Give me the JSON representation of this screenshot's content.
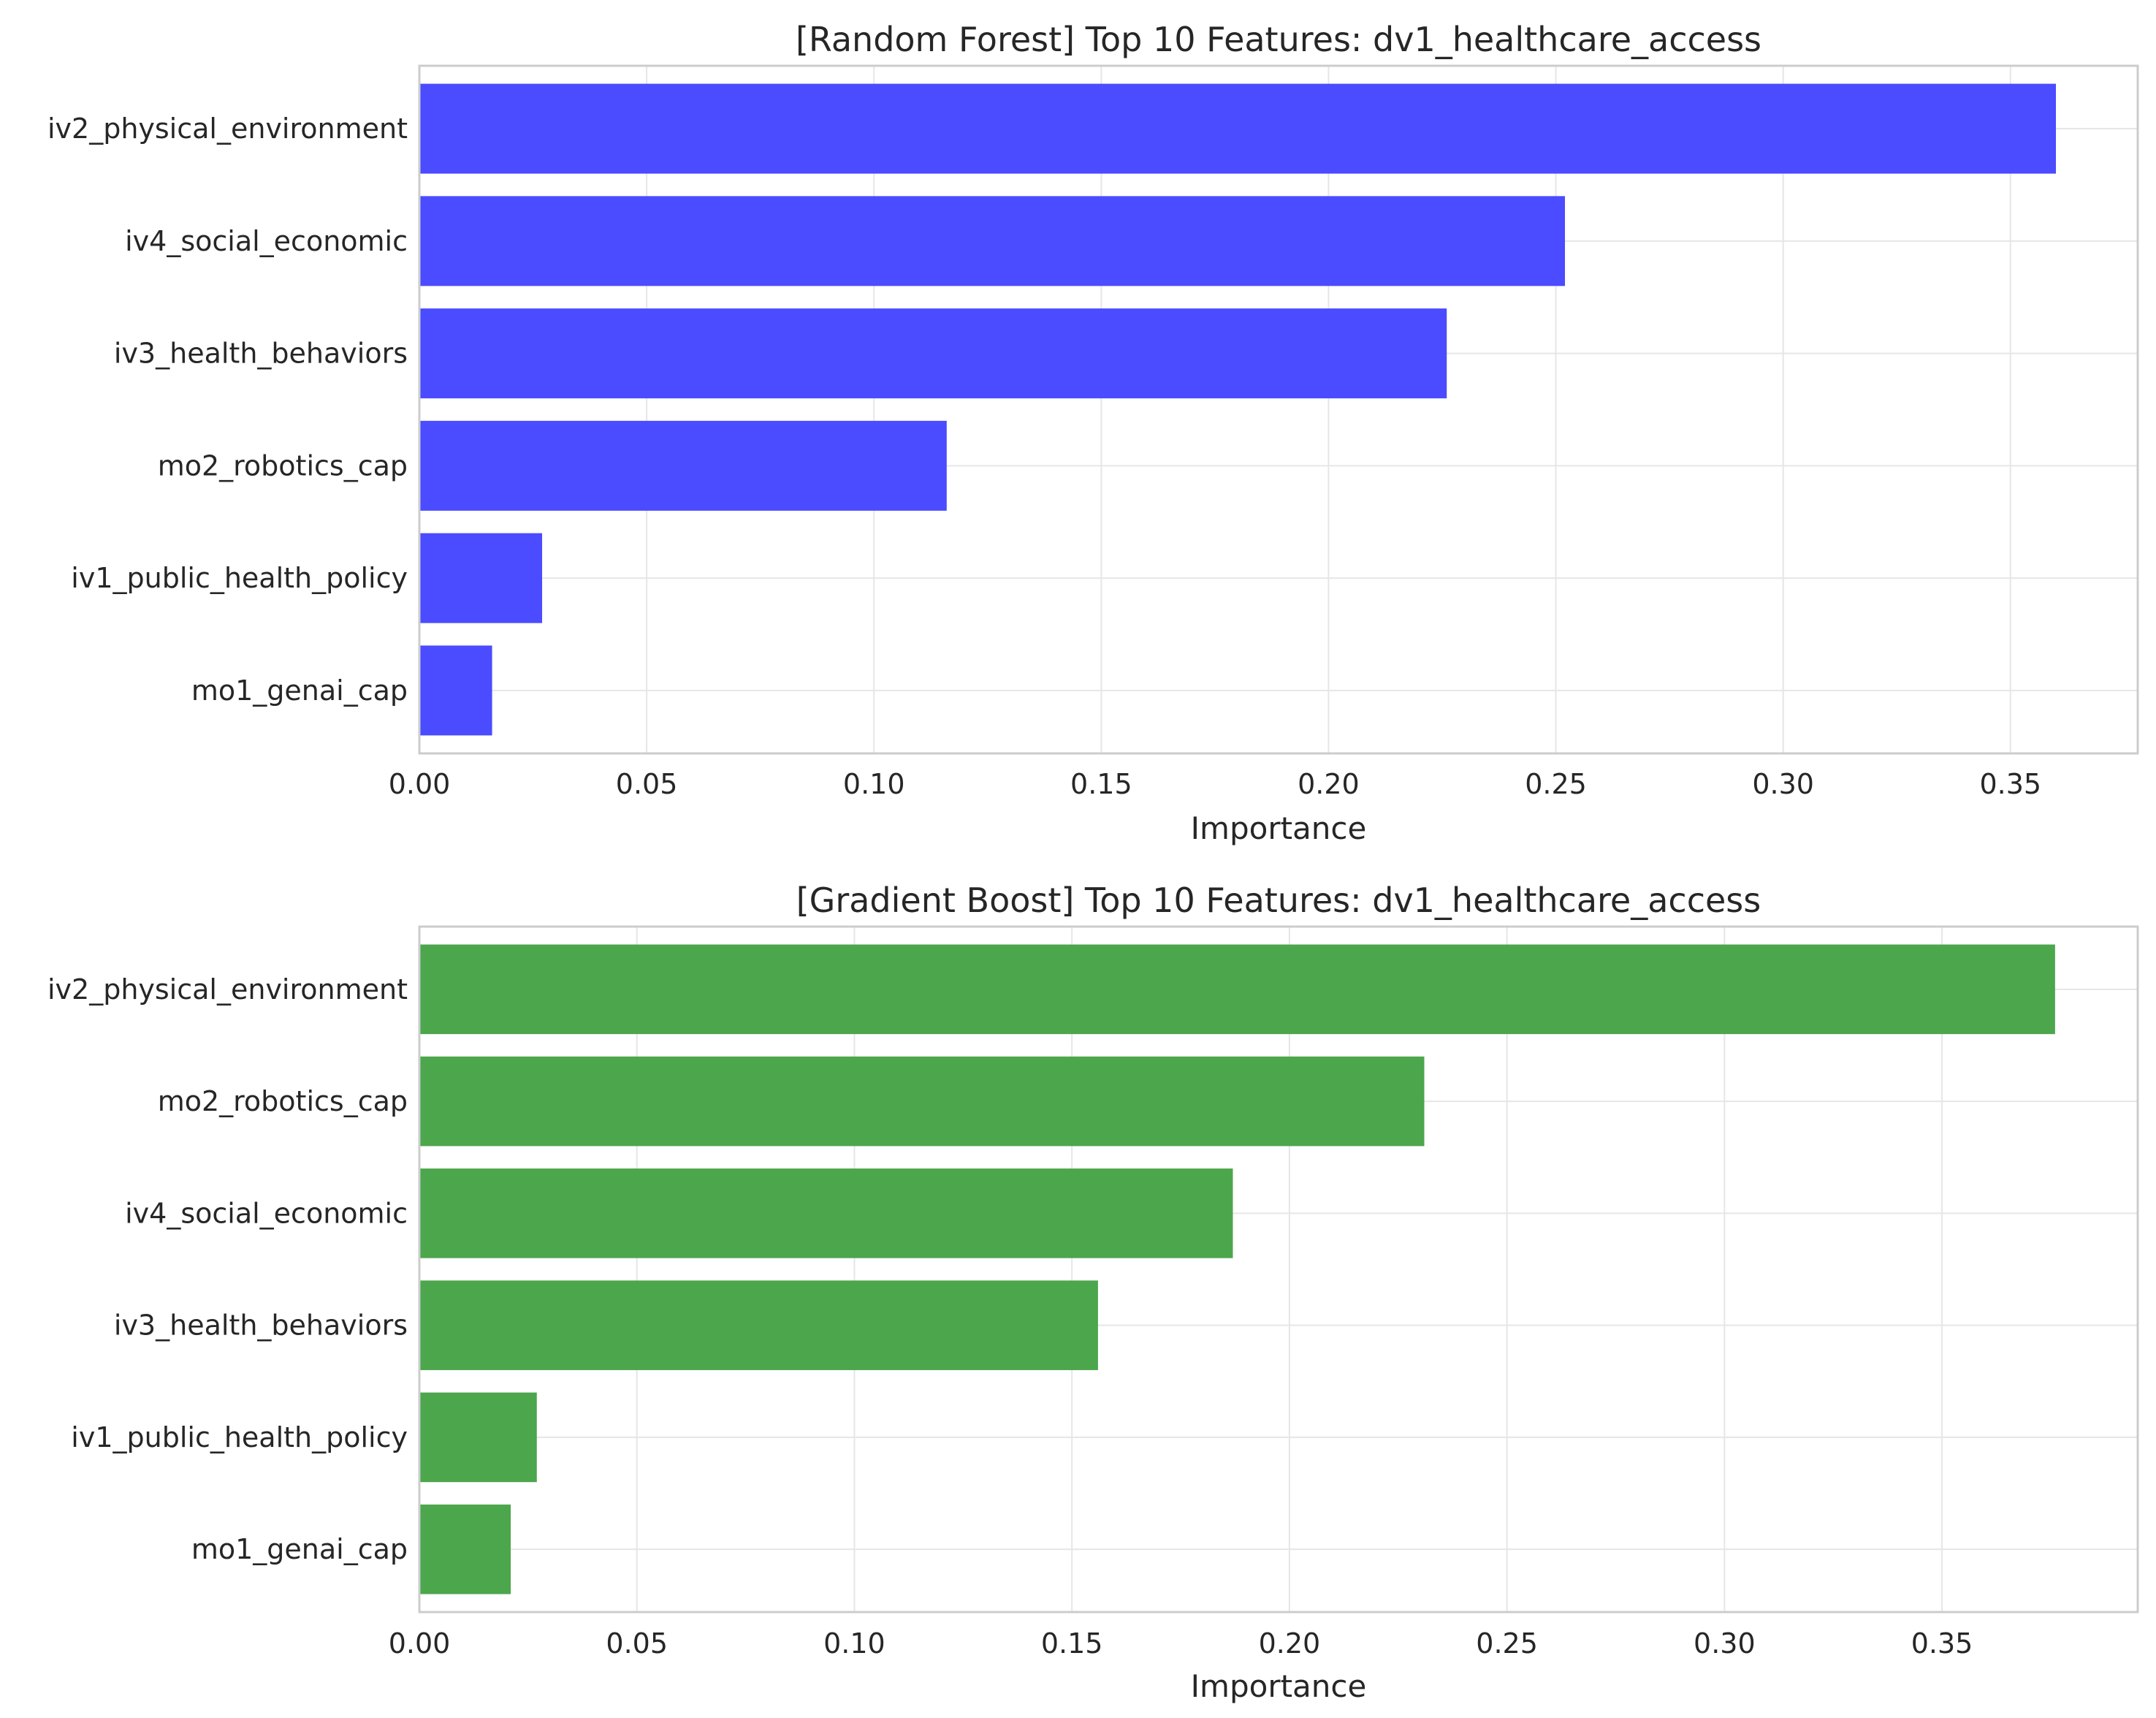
{
  "chart_data": [
    {
      "type": "bar",
      "orientation": "horizontal",
      "title": "[Random Forest] Top 10 Features: dv1_healthcare_access",
      "xlabel": "Importance",
      "ylabel": "",
      "categories": [
        "iv2_physical_environment",
        "iv4_social_economic",
        "iv3_health_behaviors",
        "mo2_robotics_cap",
        "iv1_public_health_policy",
        "mo1_genai_cap"
      ],
      "values": [
        0.36,
        0.252,
        0.226,
        0.116,
        0.027,
        0.016
      ],
      "xlim": [
        0,
        0.378
      ],
      "xticks": [
        "0.00",
        "0.05",
        "0.10",
        "0.15",
        "0.20",
        "0.25",
        "0.30",
        "0.35"
      ],
      "color": "#4b4bff",
      "grid": true
    },
    {
      "type": "bar",
      "orientation": "horizontal",
      "title": "[Gradient Boost] Top 10 Features: dv1_healthcare_access",
      "xlabel": "Importance",
      "ylabel": "",
      "categories": [
        "iv2_physical_environment",
        "mo2_robotics_cap",
        "iv4_social_economic",
        "iv3_health_behaviors",
        "iv1_public_health_policy",
        "mo1_genai_cap"
      ],
      "values": [
        0.376,
        0.231,
        0.187,
        0.156,
        0.027,
        0.021
      ],
      "xlim": [
        0,
        0.395
      ],
      "xticks": [
        "0.00",
        "0.05",
        "0.10",
        "0.15",
        "0.20",
        "0.25",
        "0.30",
        "0.35"
      ],
      "color": "#4ca64c",
      "grid": true
    }
  ]
}
